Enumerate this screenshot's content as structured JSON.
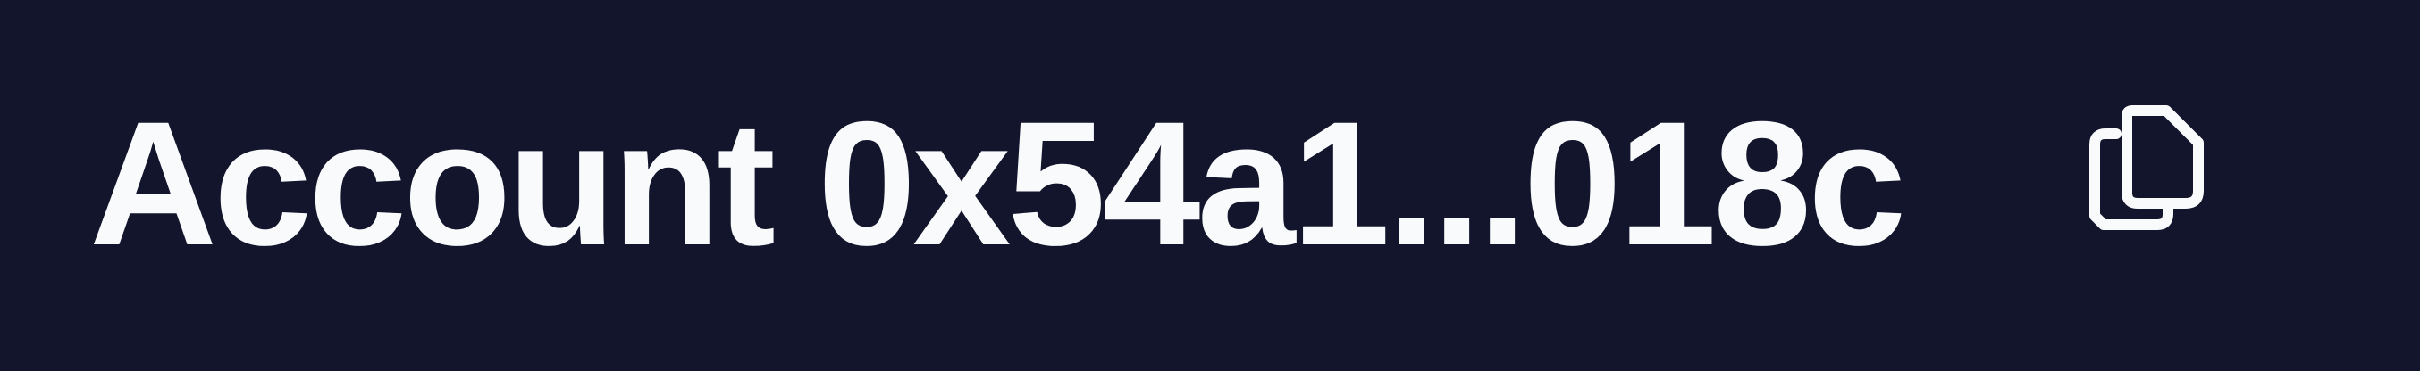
{
  "account": {
    "label": "Account",
    "address_short": "0x54a1...018c"
  },
  "icons": {
    "copy": "copy-icon"
  },
  "colors": {
    "background": "#12152b",
    "text": "#f8fafc"
  }
}
